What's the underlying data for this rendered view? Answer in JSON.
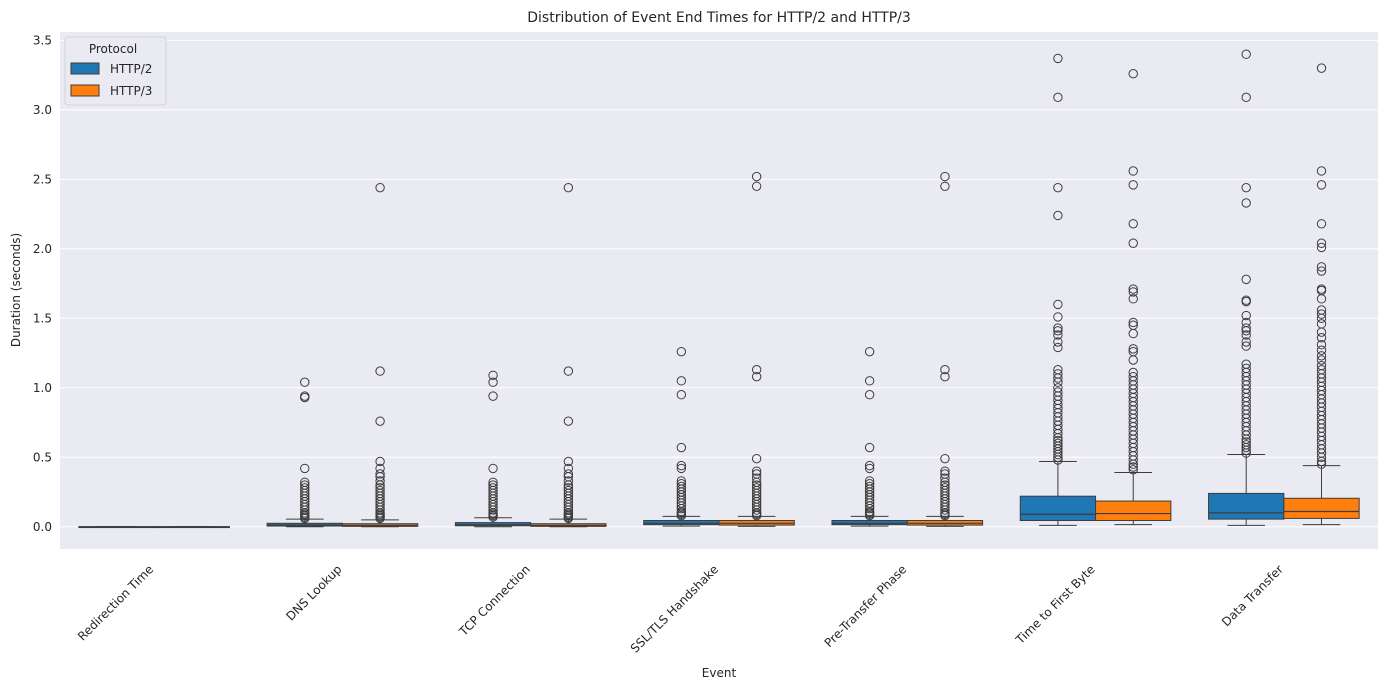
{
  "chart_data": {
    "type": "boxplot",
    "title": "Distribution of Event End Times for HTTP/2 and HTTP/3",
    "xlabel": "Event",
    "ylabel": "Duration (seconds)",
    "ylim": [
      -0.16,
      3.56
    ],
    "yticks": [
      "0.0",
      "0.5",
      "1.0",
      "1.5",
      "2.0",
      "2.5",
      "3.0",
      "3.5"
    ],
    "ytick_values": [
      0,
      0.5,
      1.0,
      1.5,
      2.0,
      2.5,
      3.0,
      3.5
    ],
    "grid": true,
    "legend": {
      "title": "Protocol",
      "position": "top-left"
    },
    "categories": [
      "Redirection Time",
      "DNS Lookup",
      "TCP Connection",
      "SSL/TLS Handshake",
      "Pre-Transfer Phase",
      "Time to First Byte",
      "Data Transfer"
    ],
    "series": [
      {
        "name": "HTTP/2",
        "color": "#1f77b4",
        "boxes": [
          {
            "q1": 0.0,
            "median": 0.0,
            "q3": 0.0,
            "whislo": 0.0,
            "whishi": 0.0,
            "fliers": []
          },
          {
            "q1": 0.005,
            "median": 0.012,
            "q3": 0.025,
            "whislo": 0.0,
            "whishi": 0.055,
            "fliers": [
              1.04,
              0.94,
              0.93,
              0.42,
              0.32,
              0.3,
              0.28,
              0.26,
              0.24,
              0.22,
              0.2,
              0.18,
              0.16,
              0.14,
              0.12,
              0.1,
              0.09,
              0.08,
              0.07,
              0.06
            ]
          },
          {
            "q1": 0.007,
            "median": 0.015,
            "q3": 0.03,
            "whislo": 0.0,
            "whishi": 0.065,
            "fliers": [
              1.09,
              1.04,
              0.94,
              0.42,
              0.32,
              0.3,
              0.28,
              0.26,
              0.24,
              0.22,
              0.2,
              0.18,
              0.16,
              0.14,
              0.12,
              0.1,
              0.09,
              0.08,
              0.07
            ]
          },
          {
            "q1": 0.015,
            "median": 0.025,
            "q3": 0.045,
            "whislo": 0.005,
            "whishi": 0.075,
            "fliers": [
              1.26,
              1.05,
              0.95,
              0.57,
              0.44,
              0.42,
              0.33,
              0.31,
              0.29,
              0.27,
              0.25,
              0.23,
              0.21,
              0.19,
              0.17,
              0.15,
              0.13,
              0.11,
              0.1,
              0.09,
              0.08
            ]
          },
          {
            "q1": 0.015,
            "median": 0.025,
            "q3": 0.045,
            "whislo": 0.005,
            "whishi": 0.075,
            "fliers": [
              1.26,
              1.05,
              0.95,
              0.57,
              0.44,
              0.42,
              0.33,
              0.31,
              0.29,
              0.27,
              0.25,
              0.23,
              0.21,
              0.19,
              0.17,
              0.15,
              0.13,
              0.11,
              0.1,
              0.09,
              0.08
            ]
          },
          {
            "q1": 0.045,
            "median": 0.09,
            "q3": 0.22,
            "whislo": 0.01,
            "whishi": 0.47,
            "fliers": [
              3.37,
              3.09,
              2.44,
              2.24,
              1.6,
              1.51,
              1.43,
              1.41,
              1.38,
              1.33,
              1.29,
              1.13,
              1.1,
              1.07,
              1.04,
              1.0,
              0.97,
              0.94,
              0.91,
              0.88,
              0.85,
              0.82,
              0.79,
              0.76,
              0.73,
              0.7,
              0.67,
              0.64,
              0.62,
              0.6,
              0.58,
              0.56,
              0.54,
              0.52,
              0.5,
              0.48
            ]
          },
          {
            "q1": 0.055,
            "median": 0.1,
            "q3": 0.24,
            "whislo": 0.01,
            "whishi": 0.52,
            "fliers": [
              3.4,
              3.09,
              2.44,
              2.33,
              1.78,
              1.63,
              1.62,
              1.52,
              1.47,
              1.43,
              1.41,
              1.38,
              1.33,
              1.3,
              1.17,
              1.14,
              1.11,
              1.08,
              1.05,
              1.02,
              0.99,
              0.96,
              0.93,
              0.9,
              0.87,
              0.84,
              0.81,
              0.78,
              0.75,
              0.72,
              0.69,
              0.66,
              0.63,
              0.61,
              0.59,
              0.57,
              0.55,
              0.53
            ]
          }
        ]
      },
      {
        "name": "HTTP/3",
        "color": "#ff7f0e",
        "boxes": [
          {
            "q1": 0.0,
            "median": 0.0,
            "q3": 0.0,
            "whislo": 0.0,
            "whishi": 0.0,
            "fliers": []
          },
          {
            "q1": 0.003,
            "median": 0.01,
            "q3": 0.022,
            "whislo": 0.0,
            "whishi": 0.05,
            "fliers": [
              2.44,
              1.12,
              0.76,
              0.47,
              0.42,
              0.38,
              0.36,
              0.33,
              0.3,
              0.28,
              0.26,
              0.24,
              0.22,
              0.2,
              0.18,
              0.16,
              0.14,
              0.12,
              0.1,
              0.09,
              0.08,
              0.07,
              0.06
            ]
          },
          {
            "q1": 0.003,
            "median": 0.01,
            "q3": 0.022,
            "whislo": 0.0,
            "whishi": 0.055,
            "fliers": [
              2.44,
              1.12,
              0.76,
              0.47,
              0.42,
              0.38,
              0.36,
              0.33,
              0.3,
              0.28,
              0.26,
              0.24,
              0.22,
              0.2,
              0.18,
              0.16,
              0.14,
              0.12,
              0.1,
              0.09,
              0.08,
              0.07,
              0.06
            ]
          },
          {
            "q1": 0.012,
            "median": 0.025,
            "q3": 0.045,
            "whislo": 0.003,
            "whishi": 0.075,
            "fliers": [
              2.52,
              2.45,
              1.13,
              1.08,
              0.49,
              0.4,
              0.38,
              0.35,
              0.32,
              0.3,
              0.28,
              0.26,
              0.24,
              0.22,
              0.2,
              0.18,
              0.16,
              0.14,
              0.12,
              0.1,
              0.09,
              0.08
            ]
          },
          {
            "q1": 0.012,
            "median": 0.025,
            "q3": 0.045,
            "whislo": 0.003,
            "whishi": 0.075,
            "fliers": [
              2.52,
              2.45,
              1.13,
              1.08,
              0.49,
              0.4,
              0.38,
              0.35,
              0.32,
              0.3,
              0.28,
              0.26,
              0.24,
              0.22,
              0.2,
              0.18,
              0.16,
              0.14,
              0.12,
              0.1,
              0.09,
              0.08
            ]
          },
          {
            "q1": 0.045,
            "median": 0.095,
            "q3": 0.185,
            "whislo": 0.015,
            "whishi": 0.39,
            "fliers": [
              3.26,
              2.56,
              2.46,
              2.18,
              2.04,
              1.71,
              1.69,
              1.64,
              1.47,
              1.45,
              1.39,
              1.28,
              1.26,
              1.2,
              1.11,
              1.08,
              1.05,
              1.02,
              0.99,
              0.96,
              0.93,
              0.9,
              0.87,
              0.84,
              0.81,
              0.78,
              0.75,
              0.72,
              0.69,
              0.66,
              0.63,
              0.6,
              0.57,
              0.54,
              0.51,
              0.48,
              0.45,
              0.43,
              0.41
            ]
          },
          {
            "q1": 0.06,
            "median": 0.11,
            "q3": 0.205,
            "whislo": 0.015,
            "whishi": 0.44,
            "fliers": [
              3.3,
              2.56,
              2.46,
              2.18,
              2.04,
              2.01,
              1.87,
              1.84,
              1.71,
              1.7,
              1.64,
              1.56,
              1.53,
              1.5,
              1.46,
              1.4,
              1.36,
              1.31,
              1.27,
              1.23,
              1.2,
              1.16,
              1.13,
              1.1,
              1.07,
              1.04,
              1.01,
              0.98,
              0.95,
              0.92,
              0.89,
              0.86,
              0.83,
              0.8,
              0.77,
              0.74,
              0.71,
              0.68,
              0.65,
              0.62,
              0.59,
              0.56,
              0.53,
              0.5,
              0.47,
              0.45
            ]
          }
        ]
      }
    ]
  }
}
